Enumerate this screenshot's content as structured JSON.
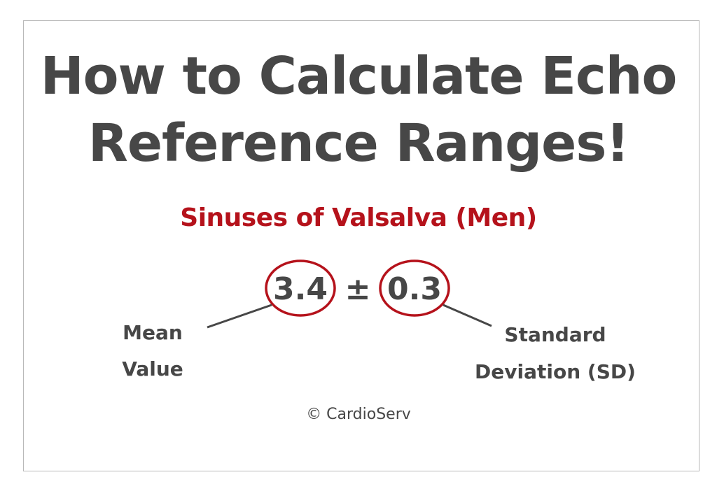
{
  "title": {
    "line1": "How to Calculate Echo",
    "line2": "Reference Ranges!"
  },
  "subtitle": "Sinuses of Valsalva (Men)",
  "formula": {
    "mean": "3.4",
    "operator": "±",
    "sd": "0.3"
  },
  "labels": {
    "mean_line1": "Mean",
    "mean_line2": "Value",
    "sd_line1": "Standard",
    "sd_line2": "Deviation (SD)"
  },
  "copyright": "© CardioServ",
  "colors": {
    "text": "#474747",
    "accent": "#b5121b",
    "border": "#b8b8b8"
  }
}
